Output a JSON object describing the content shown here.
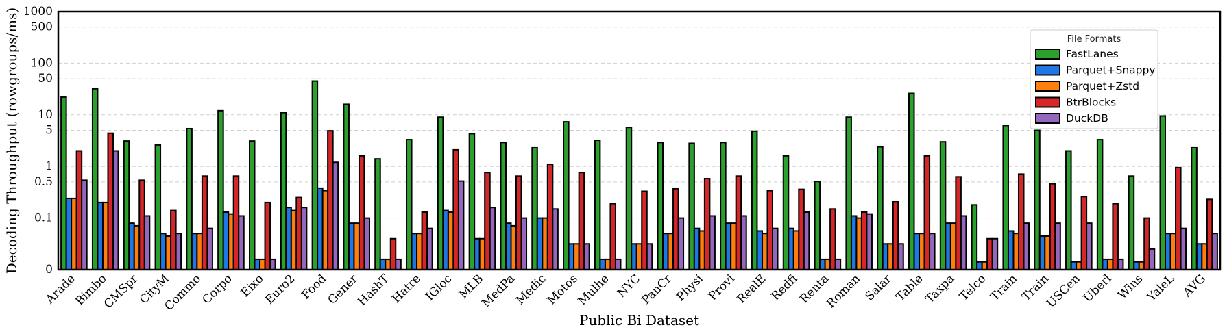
{
  "chart_data": {
    "type": "bar",
    "scale": "symlog",
    "ylabel": "Decoding Throughput (rowgroups/ms)",
    "xlabel": "Public Bi Dataset",
    "ylim": [
      0,
      1000
    ],
    "yticks": [
      0,
      0.1,
      0.5,
      1,
      5,
      10,
      50,
      100,
      500,
      1000
    ],
    "ytick_labels": [
      "0",
      "0.1",
      "0.5",
      "1",
      "5",
      "10",
      "50",
      "100",
      "500",
      "1000"
    ],
    "grid": "horizontal-dashed",
    "legend": {
      "title": "File Formats",
      "position": "top-right"
    },
    "categories": [
      "Arade",
      "Bimbo",
      "CMSpr",
      "CityM",
      "Commo",
      "Corpo",
      "Eixo",
      "Euro2",
      "Food",
      "Gener",
      "HashT",
      "Hatre",
      "IGloc",
      "MLB",
      "MedPa",
      "Medic",
      "Motos",
      "Mulhe",
      "NYC",
      "PanCr",
      "Physi",
      "Provi",
      "RealE",
      "Redfi",
      "Renta",
      "Roman",
      "Salar",
      "Table",
      "Taxpa",
      "Telco",
      "Train",
      "Train",
      "USCen",
      "Uberl",
      "Wins",
      "YaleL",
      "AVG"
    ],
    "series": [
      {
        "name": "FastLanes",
        "color": "#2ca02c",
        "values": [
          22,
          32,
          3.1,
          2.6,
          5.4,
          12,
          3.1,
          11,
          45,
          16,
          1.4,
          3.3,
          9,
          4.3,
          2.9,
          2.3,
          7.3,
          3.2,
          5.7,
          2.9,
          2.8,
          2.9,
          4.8,
          1.6,
          0.51,
          9,
          2.4,
          26,
          3,
          0.18,
          6.2,
          5,
          2,
          3.3,
          0.65,
          9.5,
          2.3
        ]
      },
      {
        "name": "Parquet+Snappy",
        "color": "#1f77e4",
        "values": [
          0.24,
          0.2,
          0.09,
          0.07,
          0.07,
          0.13,
          0.02,
          0.16,
          0.38,
          0.09,
          0.02,
          0.07,
          0.14,
          0.06,
          0.09,
          0.1,
          0.05,
          0.02,
          0.05,
          0.07,
          0.08,
          0.09,
          0.075,
          0.08,
          0.02,
          0.11,
          0.05,
          0.07,
          0.09,
          0.015,
          0.075,
          0.065,
          0.015,
          0.02,
          0.015,
          0.07,
          0.05
        ]
      },
      {
        "name": "Parquet+Zstd",
        "color": "#ff7f0e",
        "values": [
          0.24,
          0.2,
          0.085,
          0.065,
          0.07,
          0.12,
          0.02,
          0.14,
          0.34,
          0.09,
          0.02,
          0.07,
          0.13,
          0.06,
          0.085,
          0.1,
          0.05,
          0.02,
          0.05,
          0.07,
          0.075,
          0.09,
          0.07,
          0.075,
          0.02,
          0.1,
          0.05,
          0.07,
          0.09,
          0.015,
          0.07,
          0.065,
          0.015,
          0.02,
          0.015,
          0.07,
          0.05
        ]
      },
      {
        "name": "BtrBlocks",
        "color": "#d62728",
        "values": [
          2,
          4.4,
          0.54,
          0.14,
          0.65,
          0.65,
          0.2,
          0.25,
          4.9,
          1.6,
          0.06,
          0.13,
          2.1,
          0.76,
          0.65,
          1.1,
          0.76,
          0.19,
          0.33,
          0.37,
          0.58,
          0.65,
          0.34,
          0.36,
          0.15,
          0.13,
          0.21,
          1.6,
          0.63,
          0.06,
          0.71,
          0.46,
          0.26,
          0.19,
          0.1,
          0.95,
          0.23
        ]
      },
      {
        "name": "DuckDB",
        "color": "#9467bd",
        "values": [
          0.54,
          2,
          0.11,
          0.07,
          0.08,
          0.11,
          0.02,
          0.16,
          1.2,
          0.1,
          0.02,
          0.08,
          0.52,
          0.16,
          0.1,
          0.15,
          0.05,
          0.02,
          0.05,
          0.1,
          0.11,
          0.11,
          0.08,
          0.13,
          0.02,
          0.12,
          0.05,
          0.07,
          0.11,
          0.06,
          0.09,
          0.09,
          0.09,
          0.02,
          0.04,
          0.08,
          0.07
        ]
      }
    ]
  }
}
